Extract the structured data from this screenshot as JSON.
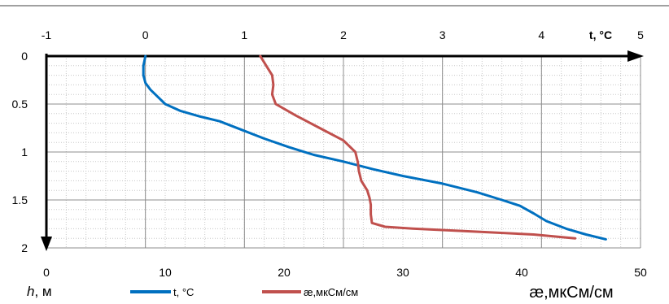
{
  "chart_data": {
    "type": "line",
    "top_axis": {
      "label": "t, °C",
      "range": [
        -1,
        5
      ],
      "ticks": [
        "-1",
        "0",
        "1",
        "2",
        "3",
        "4",
        "5"
      ]
    },
    "bottom_axis": {
      "label": "æ,мкСм/см",
      "range": [
        0,
        50
      ],
      "ticks": [
        "0",
        "10",
        "20",
        "30",
        "40",
        "50"
      ]
    },
    "left_axis": {
      "label_italic": "h",
      "label_rest": ", м",
      "range": [
        0,
        2
      ],
      "reversed": true,
      "ticks": [
        "0",
        "0.5",
        "1",
        "1.5",
        "2"
      ]
    },
    "grid": true,
    "legend_position": "bottom",
    "series": [
      {
        "name": "t, °C",
        "axis": "top",
        "color": "#0070c0",
        "points": [
          [
            0.0,
            0.0
          ],
          [
            -0.02,
            0.1
          ],
          [
            -0.02,
            0.2
          ],
          [
            0.0,
            0.28
          ],
          [
            0.05,
            0.35
          ],
          [
            0.12,
            0.42
          ],
          [
            0.2,
            0.5
          ],
          [
            0.35,
            0.57
          ],
          [
            0.55,
            0.63
          ],
          [
            0.75,
            0.68
          ],
          [
            0.95,
            0.76
          ],
          [
            1.2,
            0.86
          ],
          [
            1.45,
            0.95
          ],
          [
            1.7,
            1.03
          ],
          [
            2.0,
            1.1
          ],
          [
            2.3,
            1.18
          ],
          [
            2.6,
            1.25
          ],
          [
            3.0,
            1.33
          ],
          [
            3.35,
            1.42
          ],
          [
            3.6,
            1.5
          ],
          [
            3.78,
            1.56
          ],
          [
            3.92,
            1.64
          ],
          [
            4.05,
            1.72
          ],
          [
            4.25,
            1.8
          ],
          [
            4.45,
            1.86
          ],
          [
            4.65,
            1.91
          ]
        ]
      },
      {
        "name": "æ,мкСм/см",
        "axis": "bottom",
        "color": "#c0504d",
        "points": [
          [
            18.0,
            0.0
          ],
          [
            18.5,
            0.1
          ],
          [
            19.0,
            0.2
          ],
          [
            19.1,
            0.3
          ],
          [
            19.0,
            0.4
          ],
          [
            19.3,
            0.5
          ],
          [
            21.0,
            0.62
          ],
          [
            23.0,
            0.75
          ],
          [
            25.0,
            0.88
          ],
          [
            26.0,
            1.0
          ],
          [
            26.2,
            1.1
          ],
          [
            26.3,
            1.2
          ],
          [
            26.5,
            1.3
          ],
          [
            27.0,
            1.4
          ],
          [
            27.2,
            1.48
          ],
          [
            27.3,
            1.55
          ],
          [
            27.3,
            1.65
          ],
          [
            27.4,
            1.74
          ],
          [
            28.5,
            1.78
          ],
          [
            31.0,
            1.8
          ],
          [
            36.0,
            1.83
          ],
          [
            41.0,
            1.86
          ],
          [
            44.5,
            1.9
          ]
        ]
      }
    ]
  }
}
